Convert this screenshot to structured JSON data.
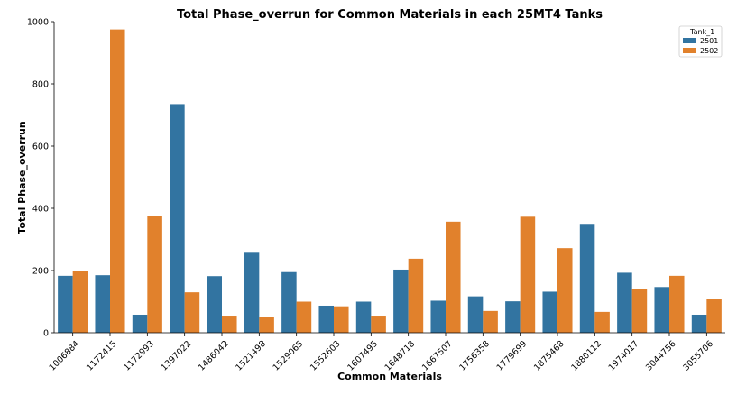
{
  "chart_data": {
    "type": "bar",
    "title": "Total Phase_overrun for Common Materials in each 25MT4 Tanks",
    "xlabel": "Common Materials",
    "ylabel": "Total Phase_overrun",
    "ylim": [
      0,
      1000
    ],
    "yticks": [
      0,
      200,
      400,
      600,
      800,
      1000
    ],
    "grid": false,
    "legend": {
      "title": "Tank_1",
      "placement": "top-right"
    },
    "categories": [
      "1006884",
      "1172415",
      "1172993",
      "1397022",
      "1486042",
      "1521498",
      "1529065",
      "1552603",
      "1607495",
      "1648718",
      "1667507",
      "1756358",
      "1779699",
      "1875468",
      "1880112",
      "1974017",
      "3044756",
      "3055706"
    ],
    "series": [
      {
        "name": "2501",
        "color": "#3274a1",
        "values": [
          183,
          185,
          58,
          735,
          182,
          260,
          195,
          87,
          100,
          203,
          103,
          117,
          101,
          132,
          350,
          193,
          147,
          58
        ]
      },
      {
        "name": "2502",
        "color": "#e1812c",
        "values": [
          198,
          975,
          375,
          130,
          55,
          50,
          100,
          85,
          55,
          238,
          357,
          70,
          373,
          272,
          67,
          140,
          183,
          108
        ]
      }
    ]
  }
}
